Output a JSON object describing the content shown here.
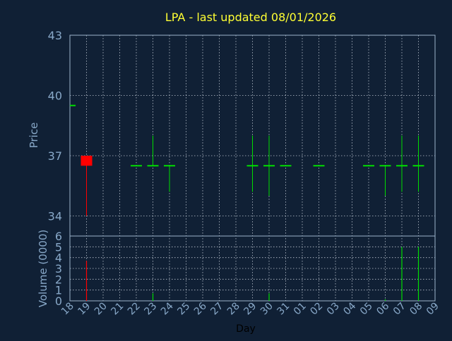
{
  "colors": {
    "background": "#102035",
    "frame": "#9bb3cc",
    "grid": "#d8e0ea",
    "axis_text": "#88a8c8",
    "title": "#ffff33",
    "up": "#00dd00",
    "down": "#ff0000"
  },
  "chart_data": [
    {
      "type": "candlestick",
      "title": "LPA - last updated 08/01/2026",
      "ylabel": "Price",
      "xlabel": "",
      "ylim": [
        33,
        43
      ],
      "yticks": [
        34,
        37,
        40,
        43
      ],
      "grid": true,
      "categories": [
        "18",
        "19",
        "20",
        "21",
        "22",
        "23",
        "24",
        "25",
        "26",
        "27",
        "28",
        "29",
        "30",
        "31",
        "01",
        "02",
        "03",
        "04",
        "05",
        "06",
        "07",
        "08",
        "09"
      ],
      "candles": [
        {
          "x": "18",
          "open": 39.5,
          "high": 39.5,
          "low": 39.5,
          "close": 39.5,
          "color": "up"
        },
        {
          "x": "19",
          "open": 37.0,
          "high": 37.0,
          "low": 34.0,
          "close": 36.5,
          "color": "down"
        },
        {
          "x": "22",
          "open": 36.5,
          "high": 36.5,
          "low": 36.5,
          "close": 36.5,
          "color": "up"
        },
        {
          "x": "23",
          "open": 36.5,
          "high": 38.0,
          "low": 36.5,
          "close": 36.5,
          "color": "up"
        },
        {
          "x": "24",
          "open": 36.5,
          "high": 36.5,
          "low": 35.2,
          "close": 36.5,
          "color": "up"
        },
        {
          "x": "29",
          "open": 36.5,
          "high": 38.0,
          "low": 35.2,
          "close": 36.5,
          "color": "up"
        },
        {
          "x": "30",
          "open": 36.5,
          "high": 38.0,
          "low": 35.0,
          "close": 36.5,
          "color": "up"
        },
        {
          "x": "31",
          "open": 36.5,
          "high": 36.5,
          "low": 36.5,
          "close": 36.5,
          "color": "up"
        },
        {
          "x": "02",
          "open": 36.5,
          "high": 36.5,
          "low": 36.5,
          "close": 36.5,
          "color": "up"
        },
        {
          "x": "05",
          "open": 36.5,
          "high": 36.5,
          "low": 36.5,
          "close": 36.5,
          "color": "up"
        },
        {
          "x": "06",
          "open": 36.5,
          "high": 36.5,
          "low": 35.0,
          "close": 36.5,
          "color": "up"
        },
        {
          "x": "07",
          "open": 36.5,
          "high": 38.0,
          "low": 35.2,
          "close": 36.5,
          "color": "up"
        },
        {
          "x": "08",
          "open": 36.5,
          "high": 38.0,
          "low": 35.2,
          "close": 36.5,
          "color": "up"
        }
      ]
    },
    {
      "type": "bar",
      "ylabel": "Volume (0000)",
      "xlabel": "Day",
      "ylim": [
        0,
        6
      ],
      "yticks": [
        0,
        1,
        2,
        3,
        4,
        5,
        6
      ],
      "grid": true,
      "categories": [
        "18",
        "19",
        "20",
        "21",
        "22",
        "23",
        "24",
        "25",
        "26",
        "27",
        "28",
        "29",
        "30",
        "31",
        "01",
        "02",
        "03",
        "04",
        "05",
        "06",
        "07",
        "08",
        "09"
      ],
      "bars": [
        {
          "x": "19",
          "value": 3.7,
          "color": "down"
        },
        {
          "x": "23",
          "value": 0.7,
          "color": "up"
        },
        {
          "x": "30",
          "value": 0.7,
          "color": "up"
        },
        {
          "x": "06",
          "value": 0.15,
          "color": "up"
        },
        {
          "x": "07",
          "value": 5.0,
          "color": "up"
        },
        {
          "x": "08",
          "value": 5.0,
          "color": "up"
        }
      ]
    }
  ]
}
